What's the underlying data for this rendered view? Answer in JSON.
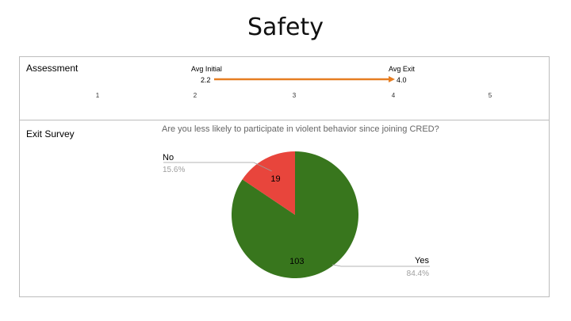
{
  "page": {
    "title": "Safety"
  },
  "assessment": {
    "label": "Assessment",
    "scale": [
      "1",
      "2",
      "3",
      "4",
      "5"
    ],
    "initial": {
      "label": "Avg Initial",
      "value": 2.2,
      "value_text": "2.2"
    },
    "exit": {
      "label": "Avg Exit",
      "value": 4.0,
      "value_text": "4.0"
    },
    "arrow_color": "#e67e22"
  },
  "exit_survey": {
    "label": "Exit Survey"
  },
  "chart_data": {
    "type": "pie",
    "title": "Are you less likely to participate in violent behavior since joining CRED?",
    "slices": [
      {
        "name": "No",
        "value": 19,
        "value_text": "19",
        "percent_text": "15.6%",
        "color": "#e8453c"
      },
      {
        "name": "Yes",
        "value": 103,
        "value_text": "103",
        "percent_text": "84.4%",
        "color": "#38761d"
      }
    ]
  }
}
